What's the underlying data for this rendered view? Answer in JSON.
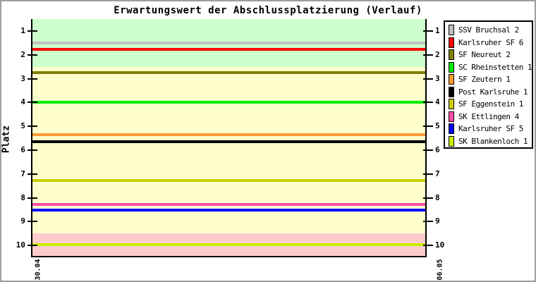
{
  "page": {
    "title": "Erwartungswert der Abschlussplatzierung (Verlauf)"
  },
  "colors": {
    "frame_border": "#9e9e9e",
    "axis": "#000000",
    "band_top": "#ccffcc",
    "band_middle": "#ffffcc",
    "band_bottom": "#ffcccc",
    "background": "#ffffff"
  },
  "chart_data": {
    "type": "line",
    "title": "Erwartungswert der Abschlussplatzierung (Verlauf)",
    "xlabel": "",
    "ylabel": "Platz",
    "x_ticks": [
      "30.04",
      "06.05"
    ],
    "y_ticks": [
      1,
      2,
      3,
      4,
      5,
      6,
      7,
      8,
      9,
      10
    ],
    "y_range": [
      0.5,
      10.5
    ],
    "y_inverted": true,
    "grid": false,
    "legend_position": "right",
    "bands": [
      {
        "name": "promotion-zone",
        "from": 0.5,
        "to": 2.5,
        "color": "#ccffcc"
      },
      {
        "name": "mid-zone",
        "from": 2.5,
        "to": 9.5,
        "color": "#ffffcc"
      },
      {
        "name": "relegation-zone",
        "from": 9.5,
        "to": 10.5,
        "color": "#ffcccc"
      }
    ],
    "series": [
      {
        "name": "SSV Bruchsal 2",
        "color": "#c0c0c0",
        "values": [
          1.5,
          1.5
        ]
      },
      {
        "name": "Karlsruher SF 6",
        "color": "#ff0000",
        "values": [
          1.78,
          1.78
        ]
      },
      {
        "name": "SF Neureut 2",
        "color": "#808000",
        "values": [
          2.74,
          2.74
        ]
      },
      {
        "name": "SC Rheinstetten 1",
        "color": "#00ee00",
        "values": [
          4.0,
          4.0
        ]
      },
      {
        "name": "SF Zeutern 1",
        "color": "#ff9933",
        "values": [
          5.34,
          5.34
        ]
      },
      {
        "name": "Post Karlsruhe 1",
        "color": "#000000",
        "values": [
          5.64,
          5.64
        ]
      },
      {
        "name": "SF Eggenstein 1",
        "color": "#cccc00",
        "values": [
          7.27,
          7.27
        ]
      },
      {
        "name": "SK Ettlingen 4",
        "color": "#ff4da6",
        "values": [
          8.27,
          8.27
        ]
      },
      {
        "name": "Karlsruher SF 5",
        "color": "#0000ff",
        "values": [
          8.53,
          8.53
        ]
      },
      {
        "name": "SK Blankenloch 1",
        "color": "#c8f000",
        "values": [
          9.97,
          9.97
        ]
      }
    ]
  }
}
